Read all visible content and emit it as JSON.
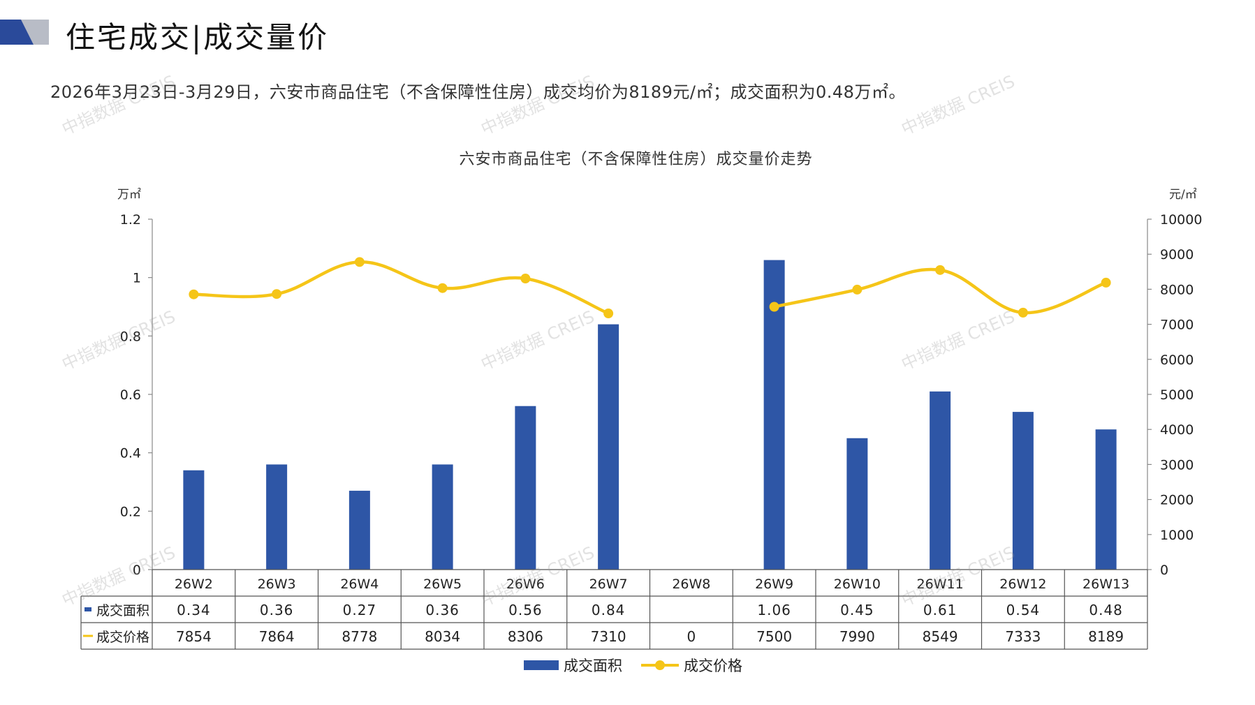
{
  "page": {
    "title": "住宅成交|成交量价",
    "summary": "2026年3月23日-3月29日，六安市商品住宅（不含保障性住房）成交均价为8189元/㎡；成交面积为0.48万㎡。",
    "watermark": "中指数据 CREIS"
  },
  "colors": {
    "bar": "#2E56A6",
    "line": "#F5C518",
    "axis": "#888888",
    "table_border": "#555555",
    "logo_dark": "#2A4A9A",
    "logo_grey": "#B8BCC6"
  },
  "chart_data": {
    "type": "bar",
    "title": "六安市商品住宅（不含保障性住房）成交量价走势",
    "categories": [
      "26W2",
      "26W3",
      "26W4",
      "26W5",
      "26W6",
      "26W7",
      "26W8",
      "26W9",
      "26W10",
      "26W11",
      "26W12",
      "26W13"
    ],
    "left_axis": {
      "unit": "万㎡",
      "ylim": [
        0,
        1.2
      ],
      "ticks": [
        "0",
        "0.2",
        "0.4",
        "0.6",
        "0.8",
        "1",
        "1.2"
      ]
    },
    "right_axis": {
      "unit": "元/㎡",
      "ylim": [
        0,
        10000
      ],
      "ticks": [
        "0",
        "1000",
        "2000",
        "3000",
        "4000",
        "5000",
        "6000",
        "7000",
        "8000",
        "9000",
        "10000"
      ]
    },
    "series": [
      {
        "name": "成交面积",
        "type": "bar",
        "axis": "left",
        "values": [
          0.34,
          0.36,
          0.27,
          0.36,
          0.56,
          0.84,
          null,
          1.06,
          0.45,
          0.61,
          0.54,
          0.48
        ],
        "labels": [
          "0.34",
          "0.36",
          "0.27",
          "0.36",
          "0.56",
          "0.84",
          "",
          "1.06",
          "0.45",
          "0.61",
          "0.54",
          "0.48"
        ]
      },
      {
        "name": "成交价格",
        "type": "line",
        "axis": "right",
        "values": [
          7854,
          7864,
          8778,
          8034,
          8306,
          7310,
          0,
          7500,
          7990,
          8549,
          7333,
          8189
        ],
        "labels": [
          "7854",
          "7864",
          "8778",
          "8034",
          "8306",
          "7310",
          "0",
          "7500",
          "7990",
          "8549",
          "7333",
          "8189"
        ]
      }
    ],
    "grid": false,
    "legend": "bottom-center",
    "data_table": true
  }
}
